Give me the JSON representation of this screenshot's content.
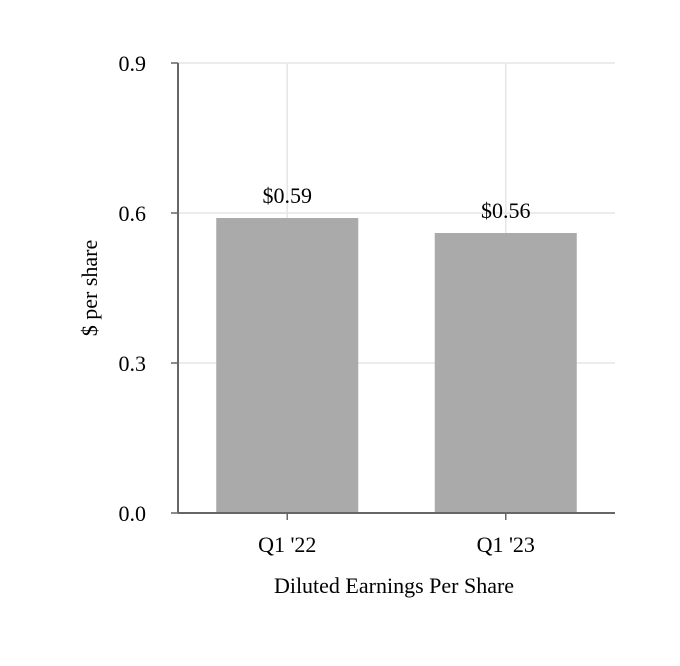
{
  "chart_data": {
    "type": "bar",
    "categories": [
      "Q1 '22",
      "Q1 '23"
    ],
    "values": [
      0.59,
      0.56
    ],
    "data_labels": [
      "$0.59",
      "$0.56"
    ],
    "xlabel": "Diluted Earnings Per Share",
    "ylabel": "$ per share",
    "ylim": [
      0,
      0.9
    ],
    "yticks": [
      "0.0",
      "0.3",
      "0.6",
      "0.9"
    ],
    "grid": true,
    "colors": {
      "bar": "#aaaaaa",
      "grid": "#e6e6e6",
      "axis": "#666666"
    }
  }
}
